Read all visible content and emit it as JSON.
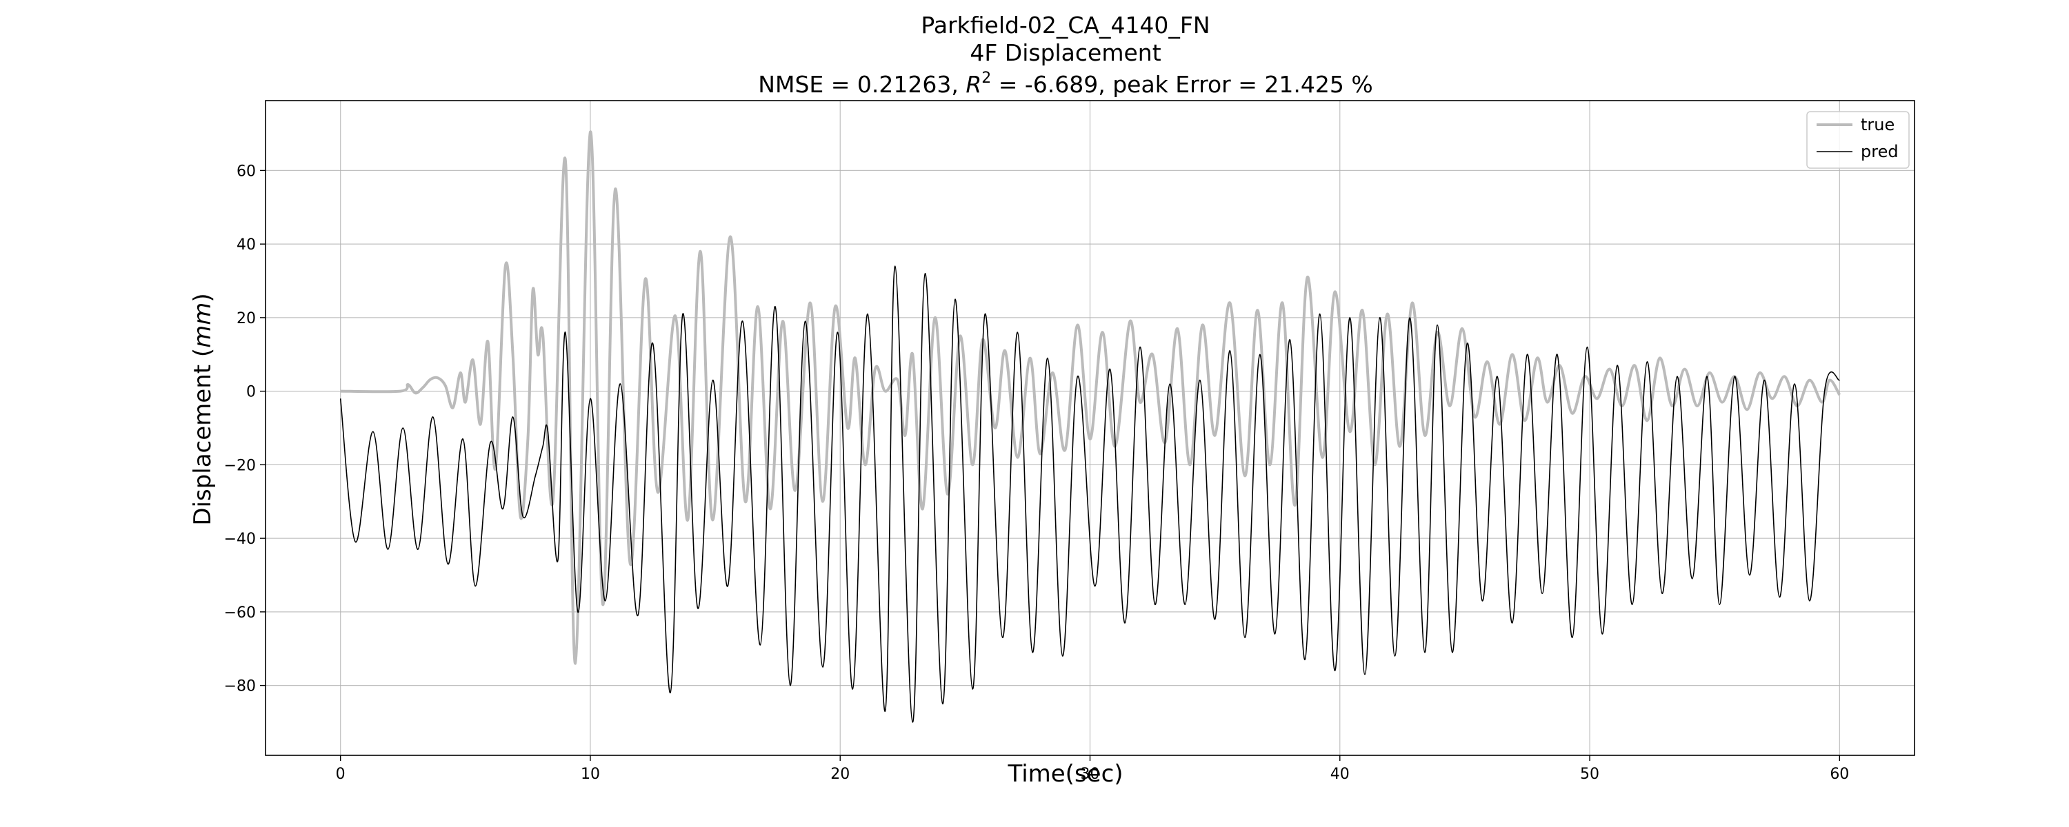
{
  "chart_data": {
    "type": "line",
    "title_lines": [
      "Parkfield-02_CA_4140_FN",
      "4F Displacement"
    ],
    "metrics": {
      "nmse_text": "NMSE = 0.21263, ",
      "r2_symbol": "R",
      "r2_exponent": "2",
      "r2_text": " = -6.689, peak Error = 21.425 %"
    },
    "xlabel": "Time(sec)",
    "ylabel_prefix": "Displacement (",
    "ylabel_unit": "mm",
    "ylabel_suffix": ")",
    "xlim": [
      -3,
      63
    ],
    "ylim": [
      -99,
      79
    ],
    "xticks": [
      0,
      10,
      20,
      30,
      40,
      50,
      60
    ],
    "yticks": [
      -80,
      -60,
      -40,
      -20,
      0,
      20,
      40,
      60
    ],
    "grid": true,
    "legend_position": "top-right",
    "series": [
      {
        "name": "true",
        "color": "#bbbbbb",
        "points": [
          [
            0,
            0
          ],
          [
            2.4,
            0
          ],
          [
            2.7,
            1.8
          ],
          [
            3.0,
            -0.5
          ],
          [
            3.3,
            1
          ],
          [
            3.6,
            3.2
          ],
          [
            3.9,
            3.6
          ],
          [
            4.2,
            1.5
          ],
          [
            4.5,
            -4.5
          ],
          [
            4.8,
            5
          ],
          [
            5.0,
            -3
          ],
          [
            5.3,
            8.5
          ],
          [
            5.6,
            -9
          ],
          [
            5.9,
            13.5
          ],
          [
            6.2,
            -21
          ],
          [
            6.6,
            34
          ],
          [
            6.9,
            10
          ],
          [
            7.2,
            -34
          ],
          [
            7.5,
            -13
          ],
          [
            7.7,
            27.5
          ],
          [
            7.9,
            10
          ],
          [
            8.1,
            15.5
          ],
          [
            8.5,
            -30
          ],
          [
            9.0,
            63
          ],
          [
            9.4,
            -74
          ],
          [
            10.0,
            70.5
          ],
          [
            10.5,
            -58
          ],
          [
            11.0,
            55
          ],
          [
            11.6,
            -47
          ],
          [
            12.2,
            30.5
          ],
          [
            12.7,
            -27.5
          ],
          [
            13.4,
            20.5
          ],
          [
            13.9,
            -35
          ],
          [
            14.4,
            38
          ],
          [
            14.9,
            -35
          ],
          [
            15.6,
            42
          ],
          [
            16.2,
            -30
          ],
          [
            16.7,
            23
          ],
          [
            17.2,
            -32
          ],
          [
            17.7,
            19
          ],
          [
            18.2,
            -27
          ],
          [
            18.8,
            24
          ],
          [
            19.3,
            -30
          ],
          [
            19.8,
            23
          ],
          [
            20.3,
            -10
          ],
          [
            20.6,
            9
          ],
          [
            21.0,
            -20
          ],
          [
            21.4,
            6
          ],
          [
            21.8,
            0
          ],
          [
            22.3,
            3
          ],
          [
            22.6,
            -12
          ],
          [
            22.9,
            10
          ],
          [
            23.3,
            -32
          ],
          [
            23.8,
            20
          ],
          [
            24.3,
            -28
          ],
          [
            24.8,
            15
          ],
          [
            25.3,
            -20
          ],
          [
            25.7,
            14
          ],
          [
            26.2,
            -10
          ],
          [
            26.6,
            11
          ],
          [
            27.1,
            -18
          ],
          [
            27.6,
            9
          ],
          [
            28.0,
            -17
          ],
          [
            28.5,
            5
          ],
          [
            29.0,
            -16
          ],
          [
            29.5,
            18
          ],
          [
            30.0,
            -13
          ],
          [
            30.5,
            16
          ],
          [
            31.0,
            -15
          ],
          [
            31.6,
            19
          ],
          [
            32.0,
            -3
          ],
          [
            32.5,
            10
          ],
          [
            33.0,
            -14
          ],
          [
            33.5,
            17
          ],
          [
            34.0,
            -20
          ],
          [
            34.5,
            18
          ],
          [
            35.0,
            -12
          ],
          [
            35.6,
            24
          ],
          [
            36.2,
            -23
          ],
          [
            36.7,
            22
          ],
          [
            37.2,
            -20
          ],
          [
            37.7,
            24
          ],
          [
            38.2,
            -31
          ],
          [
            38.7,
            31
          ],
          [
            39.3,
            -18
          ],
          [
            39.8,
            27
          ],
          [
            40.4,
            -11
          ],
          [
            40.9,
            22
          ],
          [
            41.4,
            -20
          ],
          [
            41.9,
            21
          ],
          [
            42.4,
            -15
          ],
          [
            42.9,
            24
          ],
          [
            43.4,
            -12
          ],
          [
            43.9,
            16
          ],
          [
            44.4,
            -4
          ],
          [
            44.9,
            17
          ],
          [
            45.4,
            -7
          ],
          [
            45.9,
            8
          ],
          [
            46.4,
            -9
          ],
          [
            46.9,
            10
          ],
          [
            47.4,
            -8
          ],
          [
            47.9,
            9
          ],
          [
            48.3,
            -3
          ],
          [
            48.8,
            7
          ],
          [
            49.3,
            -6
          ],
          [
            49.8,
            4
          ],
          [
            50.3,
            -2
          ],
          [
            50.8,
            6
          ],
          [
            51.3,
            -4
          ],
          [
            51.8,
            7
          ],
          [
            52.3,
            -8
          ],
          [
            52.8,
            9
          ],
          [
            53.3,
            -4
          ],
          [
            53.8,
            6
          ],
          [
            54.3,
            -4
          ],
          [
            54.8,
            5
          ],
          [
            55.3,
            -3
          ],
          [
            55.8,
            4
          ],
          [
            56.3,
            -5
          ],
          [
            56.8,
            5
          ],
          [
            57.3,
            -2
          ],
          [
            57.8,
            4
          ],
          [
            58.3,
            -4
          ],
          [
            58.8,
            3
          ],
          [
            59.3,
            -3
          ],
          [
            59.6,
            3
          ],
          [
            60.0,
            -1
          ]
        ]
      },
      {
        "name": "pred",
        "color": "#000000",
        "points": [
          [
            0,
            -2
          ],
          [
            0.6,
            -41
          ],
          [
            1.3,
            -11
          ],
          [
            1.9,
            -43
          ],
          [
            2.5,
            -10
          ],
          [
            3.1,
            -43
          ],
          [
            3.7,
            -7
          ],
          [
            4.3,
            -47
          ],
          [
            4.9,
            -13
          ],
          [
            5.4,
            -53
          ],
          [
            6.0,
            -14
          ],
          [
            6.5,
            -32
          ],
          [
            6.9,
            -7
          ],
          [
            7.3,
            -34
          ],
          [
            7.8,
            -23
          ],
          [
            8.1,
            -15
          ],
          [
            8.3,
            -11
          ],
          [
            8.7,
            -46
          ],
          [
            9.0,
            16
          ],
          [
            9.5,
            -60
          ],
          [
            10.0,
            -2
          ],
          [
            10.6,
            -57
          ],
          [
            11.2,
            2
          ],
          [
            11.9,
            -61
          ],
          [
            12.5,
            13
          ],
          [
            13.2,
            -82
          ],
          [
            13.7,
            21
          ],
          [
            14.3,
            -59
          ],
          [
            14.9,
            3
          ],
          [
            15.5,
            -53
          ],
          [
            16.1,
            19
          ],
          [
            16.8,
            -69
          ],
          [
            17.4,
            23
          ],
          [
            18.0,
            -80
          ],
          [
            18.6,
            19
          ],
          [
            19.3,
            -75
          ],
          [
            19.9,
            16
          ],
          [
            20.5,
            -81
          ],
          [
            21.1,
            21
          ],
          [
            21.8,
            -87
          ],
          [
            22.2,
            34
          ],
          [
            22.9,
            -90
          ],
          [
            23.4,
            32
          ],
          [
            24.1,
            -85
          ],
          [
            24.6,
            25
          ],
          [
            25.3,
            -81
          ],
          [
            25.8,
            21
          ],
          [
            26.5,
            -67
          ],
          [
            27.1,
            16
          ],
          [
            27.7,
            -71
          ],
          [
            28.3,
            9
          ],
          [
            28.9,
            -72
          ],
          [
            29.5,
            4
          ],
          [
            30.2,
            -53
          ],
          [
            30.8,
            6
          ],
          [
            31.4,
            -63
          ],
          [
            32.0,
            12
          ],
          [
            32.6,
            -58
          ],
          [
            33.2,
            2
          ],
          [
            33.8,
            -58
          ],
          [
            34.4,
            3
          ],
          [
            35.0,
            -62
          ],
          [
            35.6,
            11
          ],
          [
            36.2,
            -67
          ],
          [
            36.8,
            10
          ],
          [
            37.4,
            -66
          ],
          [
            38.0,
            14
          ],
          [
            38.6,
            -73
          ],
          [
            39.2,
            21
          ],
          [
            39.8,
            -76
          ],
          [
            40.4,
            20
          ],
          [
            41.0,
            -77
          ],
          [
            41.6,
            20
          ],
          [
            42.2,
            -72
          ],
          [
            42.8,
            20
          ],
          [
            43.4,
            -71
          ],
          [
            43.9,
            18
          ],
          [
            44.5,
            -71
          ],
          [
            45.1,
            13
          ],
          [
            45.7,
            -57
          ],
          [
            46.3,
            4
          ],
          [
            46.9,
            -63
          ],
          [
            47.5,
            10
          ],
          [
            48.1,
            -55
          ],
          [
            48.7,
            10
          ],
          [
            49.3,
            -67
          ],
          [
            49.9,
            12
          ],
          [
            50.5,
            -66
          ],
          [
            51.1,
            7
          ],
          [
            51.7,
            -58
          ],
          [
            52.3,
            8
          ],
          [
            52.9,
            -55
          ],
          [
            53.5,
            4
          ],
          [
            54.1,
            -51
          ],
          [
            54.7,
            4
          ],
          [
            55.2,
            -58
          ],
          [
            55.8,
            4
          ],
          [
            56.4,
            -50
          ],
          [
            57.0,
            3
          ],
          [
            57.6,
            -56
          ],
          [
            58.2,
            2
          ],
          [
            58.8,
            -57
          ],
          [
            59.4,
            0
          ],
          [
            60.0,
            3
          ]
        ]
      }
    ]
  }
}
